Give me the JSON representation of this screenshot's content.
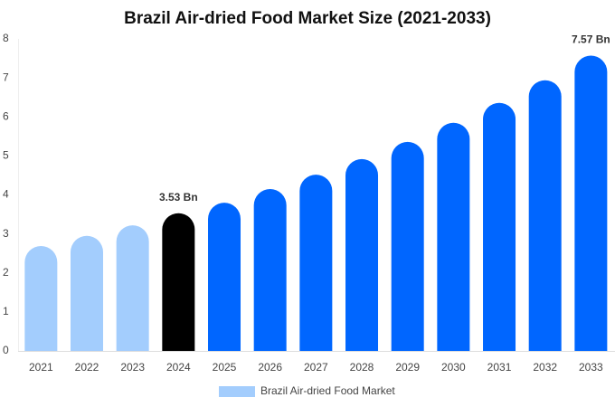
{
  "chart_data": {
    "type": "bar",
    "title": "Brazil Air-dried Food Market Size (2021-2033)",
    "categories": [
      "2021",
      "2022",
      "2023",
      "2024",
      "2025",
      "2026",
      "2027",
      "2028",
      "2029",
      "2030",
      "2031",
      "2032",
      "2033"
    ],
    "series": [
      {
        "name": "Brazil Air-dried Food Market",
        "color": "#a3cdfd",
        "values": [
          2.69,
          2.95,
          3.22,
          3.53,
          3.8,
          4.15,
          4.52,
          4.92,
          5.36,
          5.85,
          6.36,
          6.94,
          7.57
        ],
        "colors": [
          "#a3cdfd",
          "#a3cdfd",
          "#a3cdfd",
          "#000000",
          "#0066ff",
          "#0066ff",
          "#0066ff",
          "#0066ff",
          "#0066ff",
          "#0066ff",
          "#0066ff",
          "#0066ff",
          "#0066ff"
        ],
        "value_labels": [
          null,
          null,
          null,
          "3.53 Bn",
          null,
          null,
          null,
          null,
          null,
          null,
          null,
          null,
          "7.57 Bn"
        ]
      }
    ],
    "ylim": [
      0,
      8
    ],
    "yticks": [
      0,
      1,
      2,
      3,
      4,
      5,
      6,
      7,
      8
    ],
    "grid": false,
    "legend": "bottom"
  }
}
